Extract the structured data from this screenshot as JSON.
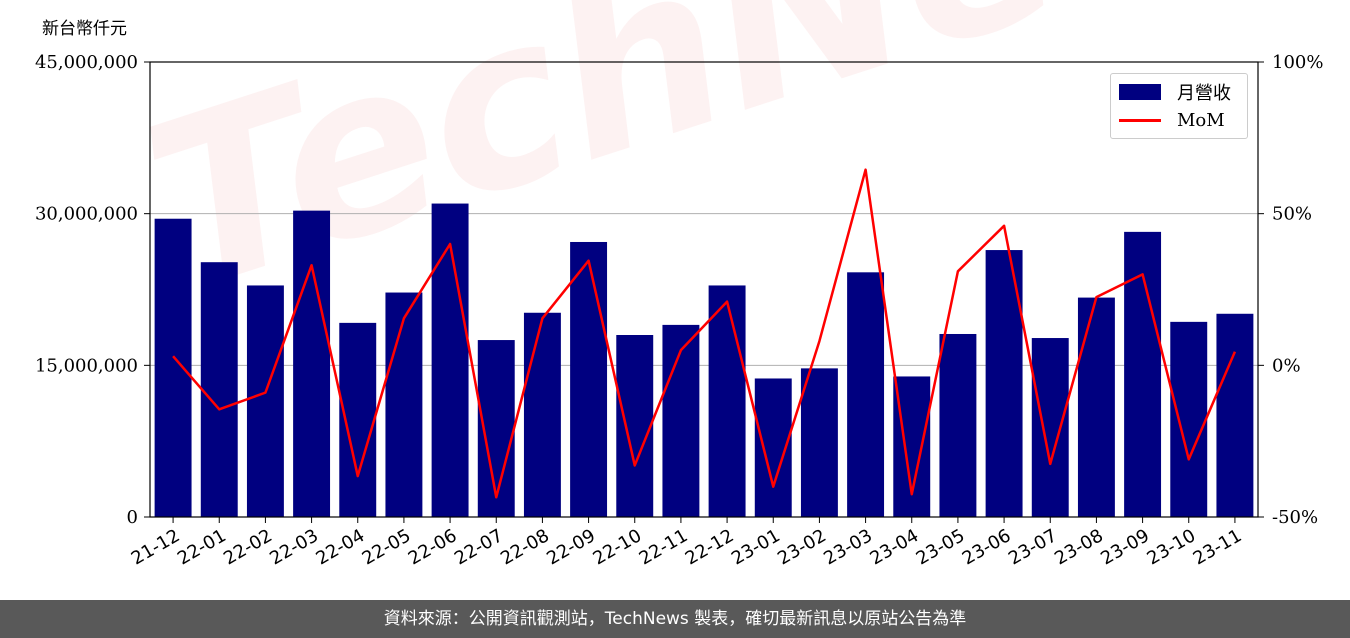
{
  "colors": {
    "bar": "#000080",
    "line": "#ff0000",
    "grid": "#b0b0b0",
    "footer_bg": "#595959"
  },
  "watermark": "TechNews",
  "footer_text": "資料來源：公開資訊觀測站，TechNews 製表，確切最新訊息以原站公告為準",
  "chart_data": {
    "type": "bar",
    "categories": [
      "21-12",
      "22-01",
      "22-02",
      "22-03",
      "22-04",
      "22-05",
      "22-06",
      "22-07",
      "22-08",
      "22-09",
      "22-10",
      "22-11",
      "22-12",
      "23-01",
      "23-02",
      "23-03",
      "23-04",
      "23-05",
      "23-06",
      "23-07",
      "23-08",
      "23-09",
      "23-10",
      "23-11"
    ],
    "y_unit_label": "新台幣仟元",
    "ylim": [
      0,
      45000000
    ],
    "yticks": [
      0,
      15000000,
      30000000,
      45000000
    ],
    "ytick_labels": [
      "0",
      "15,000,000",
      "30,000,000",
      "45,000,000"
    ],
    "y2lim": [
      -50,
      100
    ],
    "y2ticks": [
      -50,
      0,
      50,
      100
    ],
    "y2tick_labels": [
      "-50%",
      "0%",
      "50%",
      "100%"
    ],
    "grid": "horizontal",
    "legend_position": "top-right",
    "series": [
      {
        "name": "月營收",
        "type": "bar",
        "axis": "left",
        "values": [
          29500000,
          25200000,
          22900000,
          30300000,
          19200000,
          22200000,
          31000000,
          17500000,
          20200000,
          27200000,
          18000000,
          19000000,
          22900000,
          13700000,
          14700000,
          24200000,
          13900000,
          18100000,
          26400000,
          17700000,
          21700000,
          28200000,
          19300000,
          20100000
        ]
      },
      {
        "name": "MoM",
        "type": "line",
        "axis": "right",
        "values": [
          3,
          -14.5,
          -9,
          33,
          -36.5,
          15.5,
          40,
          -43.5,
          15.5,
          34.5,
          -33,
          5,
          21,
          -40,
          8,
          64.5,
          -42.5,
          31,
          46,
          -32.5,
          22.5,
          30,
          -31,
          4.5
        ]
      }
    ]
  }
}
